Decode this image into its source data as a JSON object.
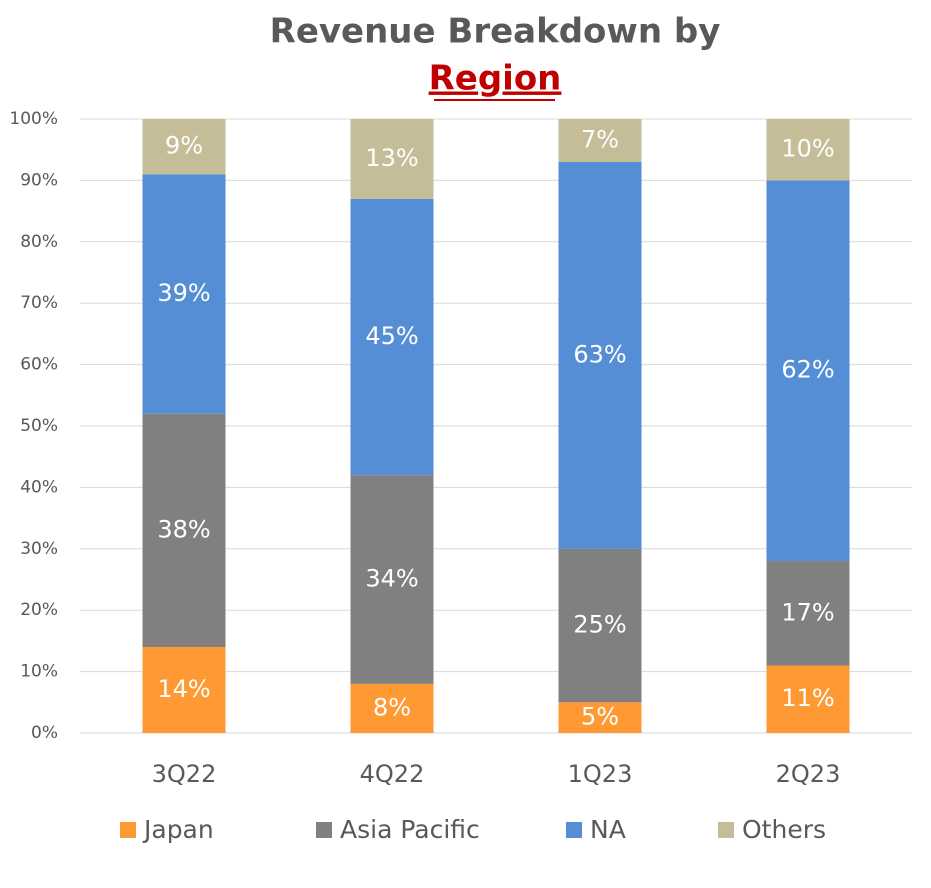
{
  "chart_data": {
    "type": "stacked_bar",
    "title": "Revenue Breakdown by",
    "title_highlight": "Region",
    "categories": [
      "3Q22",
      "4Q22",
      "1Q23",
      "2Q23"
    ],
    "series": [
      {
        "name": "Japan",
        "color": "#FF9933",
        "values": [
          14,
          8,
          5,
          11
        ],
        "value_labels": [
          "14%",
          "8%",
          "5%",
          "11%"
        ]
      },
      {
        "name": "Asia Pacific",
        "color": "#808080",
        "values": [
          38,
          34,
          25,
          17
        ],
        "value_labels": [
          "38%",
          "34%",
          "25%",
          "17%"
        ]
      },
      {
        "name": "NA",
        "color": "#558ED5",
        "values": [
          39,
          45,
          63,
          62
        ],
        "value_labels": [
          "39%",
          "45%",
          "63%",
          "62%"
        ]
      },
      {
        "name": "Others",
        "color": "#C4BD97",
        "values": [
          9,
          13,
          7,
          10
        ],
        "value_labels": [
          "9%",
          "13%",
          "7%",
          "10%"
        ]
      }
    ],
    "ylim": [
      0,
      100
    ],
    "yticks": [
      {
        "value": 0,
        "label": "0%"
      },
      {
        "value": 10,
        "label": "10%"
      },
      {
        "value": 20,
        "label": "20%"
      },
      {
        "value": 30,
        "label": "30%"
      },
      {
        "value": 40,
        "label": "40%"
      },
      {
        "value": 50,
        "label": "50%"
      },
      {
        "value": 60,
        "label": "60%"
      },
      {
        "value": 70,
        "label": "70%"
      },
      {
        "value": 80,
        "label": "80%"
      },
      {
        "value": 90,
        "label": "90%"
      },
      {
        "value": 100,
        "label": "100%"
      }
    ],
    "grid": true,
    "legend": "bottom"
  }
}
